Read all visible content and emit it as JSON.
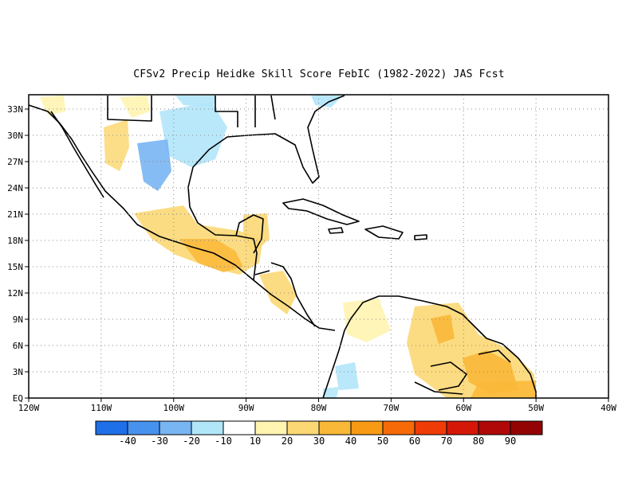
{
  "title": "CFSv2 Precip Heidke Skill Score FebIC (1982-2022) JAS Fcst",
  "map": {
    "lon_ticks": [
      "120W",
      "110W",
      "100W",
      "90W",
      "80W",
      "70W",
      "60W",
      "50W",
      "40W"
    ],
    "lat_ticks": [
      "EQ",
      "3N",
      "6N",
      "9N",
      "12N",
      "15N",
      "18N",
      "21N",
      "24N",
      "27N",
      "30N",
      "33N"
    ],
    "grid": "dotted",
    "coastline_color": "#000000"
  },
  "colorbar": {
    "labels": [
      "-40",
      "-30",
      "-20",
      "-10",
      "10",
      "20",
      "30",
      "40",
      "50",
      "60",
      "70",
      "80",
      "90"
    ],
    "colors": [
      "#1f6fe8",
      "#4792ee",
      "#78b5f3",
      "#b1e6f9",
      "#ffffff",
      "#fff4b0",
      "#fcd874",
      "#fab838",
      "#f89a14",
      "#f66a08",
      "#ef3c06",
      "#d51708",
      "#b00808",
      "#930303"
    ]
  }
}
